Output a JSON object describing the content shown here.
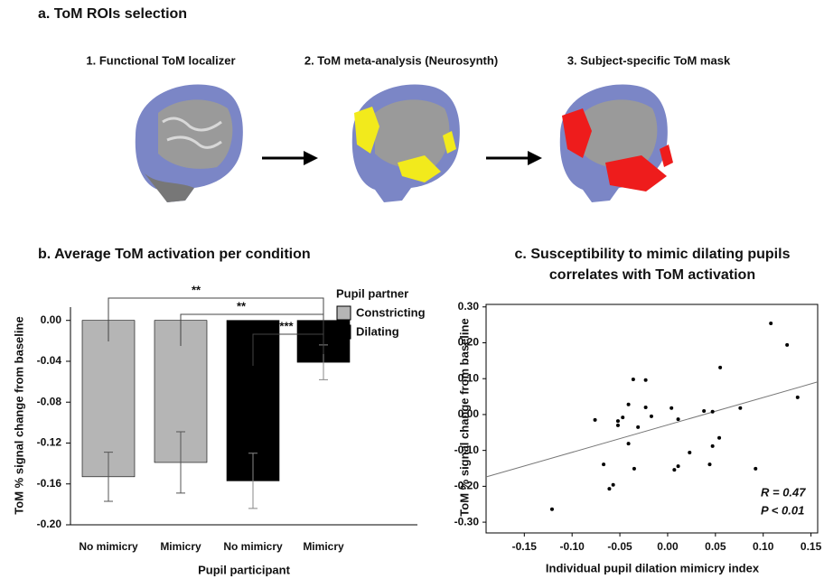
{
  "panel_a": {
    "title": "a. ToM ROIs selection",
    "steps": [
      "1. Functional ToM localizer",
      "2. ToM meta-analysis (Neurosynth)",
      "3. Subject-specific ToM mask"
    ]
  },
  "chart_data": [
    {
      "type": "bar",
      "title": "b. Average ToM activation per condition",
      "categories": [
        "No mimicry",
        "Mimicry",
        "No mimicry",
        "Mimicry"
      ],
      "x_label": "Pupil participant",
      "y_label": "ToM % signal change from baseline",
      "legend_title": "Pupil partner",
      "series": [
        {
          "name": "Constricting",
          "color": "#b5b5b5",
          "values": [
            -0.153,
            -0.139,
            null,
            null
          ],
          "errors": [
            0.024,
            0.03,
            null,
            null
          ]
        },
        {
          "name": "Dilating",
          "color": "#000000",
          "values": [
            null,
            null,
            -0.157,
            -0.041
          ],
          "errors": [
            null,
            null,
            0.027,
            0.017
          ]
        }
      ],
      "ylim": [
        -0.2,
        0.013
      ],
      "yticks": [
        {
          "value": 0,
          "label": "0.00"
        },
        -0.04,
        -0.08,
        -0.12,
        -0.16,
        {
          "value": -0.2,
          "label": "-0.20"
        }
      ],
      "significance": [
        "**",
        "**",
        "***"
      ]
    },
    {
      "type": "scatter",
      "title": [
        "c. Susceptibility to mimic dilating pupils",
        "correlates with ToM activation"
      ],
      "x_label": "Individual pupil dilation mimicry index",
      "y_label": "ToM % signal change from baseline",
      "color": "#000000",
      "x": [
        -0.121,
        -0.076,
        -0.067,
        -0.061,
        -0.057,
        -0.047,
        -0.052,
        -0.052,
        -0.041,
        -0.041,
        -0.036,
        -0.035,
        -0.031,
        -0.023,
        -0.023,
        -0.017,
        0.004,
        0.007,
        0.011,
        0.011,
        0.023,
        0.038,
        0.044,
        0.047,
        0.047,
        0.054,
        0.055,
        0.076,
        0.092,
        0.108,
        0.125,
        0.136
      ],
      "y": [
        -0.264,
        -0.015,
        -0.139,
        -0.207,
        -0.196,
        -0.008,
        -0.018,
        -0.03,
        0.028,
        -0.081,
        0.098,
        -0.151,
        -0.035,
        0.096,
        0.02,
        -0.005,
        0.018,
        -0.154,
        -0.144,
        -0.013,
        -0.106,
        0.01,
        -0.139,
        -0.088,
        0.008,
        -0.065,
        0.131,
        0.018,
        -0.151,
        0.254,
        0.194,
        0.048
      ],
      "fit_line": {
        "x": [
          -0.19,
          0.157
        ],
        "y": [
          -0.174,
          0.091
        ]
      },
      "xlim": [
        -0.19,
        0.157
      ],
      "xticks": [
        -0.15,
        {
          "value": -0.1,
          "label": "-0.10"
        },
        -0.05,
        {
          "value": 0,
          "label": "0.00"
        },
        0.05,
        {
          "value": 0.1,
          "label": "0.10"
        },
        0.15
      ],
      "ylim": [
        -0.33,
        0.307
      ],
      "yticks": [
        {
          "value": -0.3,
          "label": "-0.30"
        },
        {
          "value": -0.2,
          "label": "-0.20"
        },
        {
          "value": -0.1,
          "label": "-0.10"
        },
        {
          "value": 0,
          "label": "0.00"
        },
        {
          "value": 0.1,
          "label": "0.10"
        },
        {
          "value": 0.2,
          "label": "0.20"
        },
        {
          "value": 0.3,
          "label": "0.30"
        }
      ],
      "annotations": [
        "R = 0.47",
        "P < 0.01"
      ]
    }
  ]
}
